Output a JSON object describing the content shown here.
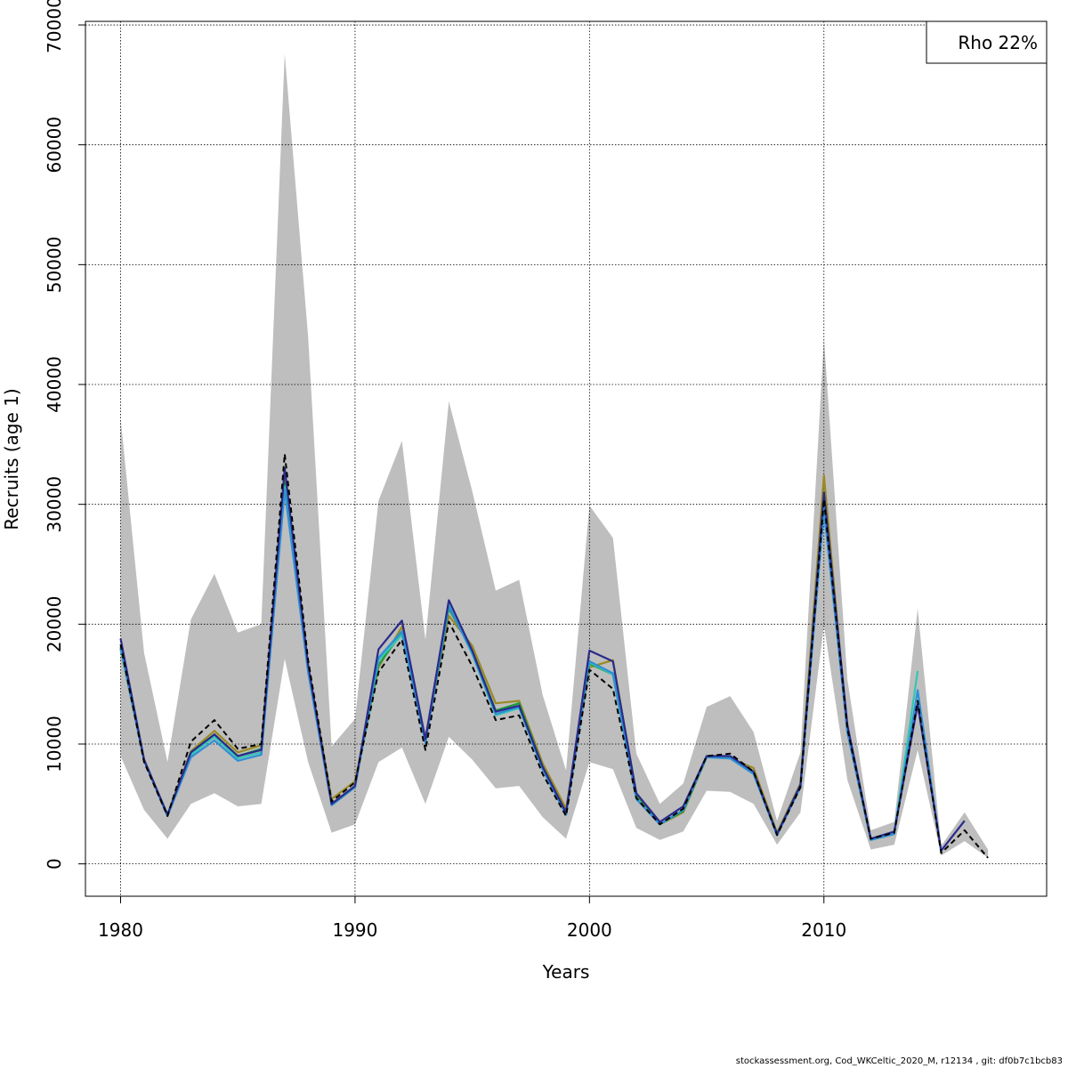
{
  "chart_data": {
    "type": "line",
    "xlabel": "Years",
    "ylabel": "Recruits (age 1)",
    "xlim": [
      1978.5,
      2019.5
    ],
    "ylim": [
      -2700,
      70300
    ],
    "x_ticks": [
      1980,
      1990,
      2000,
      2010
    ],
    "y_ticks": [
      0,
      10000,
      20000,
      30000,
      40000,
      50000,
      60000,
      70000
    ],
    "grid": true,
    "legend": {
      "text": "Rho 22%",
      "position": "top-right"
    },
    "confidence_band": {
      "years": [
        1980,
        1981,
        1982,
        1983,
        1984,
        1985,
        1986,
        1987,
        1988,
        1989,
        1990,
        1991,
        1992,
        1993,
        1994,
        1995,
        1996,
        1997,
        1998,
        1999,
        2000,
        2001,
        2002,
        2003,
        2004,
        2005,
        2006,
        2007,
        2008,
        2009,
        2010,
        2011,
        2012,
        2013,
        2014,
        2015,
        2016,
        2017
      ],
      "lower": [
        9000,
        4500,
        2100,
        5000,
        5900,
        4800,
        5000,
        17100,
        8500,
        2600,
        3300,
        8500,
        9700,
        5000,
        10600,
        8700,
        6300,
        6500,
        3900,
        2100,
        8500,
        7900,
        3000,
        2000,
        2700,
        6100,
        6000,
        5000,
        1600,
        4300,
        19900,
        7000,
        1200,
        1600,
        9500,
        700,
        1900,
        500
      ],
      "upper": [
        37200,
        17600,
        8500,
        20400,
        24200,
        19300,
        20000,
        67600,
        44000,
        9800,
        12100,
        30300,
        35300,
        18700,
        38600,
        31100,
        22800,
        23700,
        14100,
        7800,
        29900,
        27200,
        9200,
        5000,
        6700,
        13100,
        14000,
        11000,
        3600,
        9300,
        43800,
        15400,
        2800,
        3500,
        21300,
        1500,
        4300,
        1200
      ]
    },
    "series": [
      {
        "color": "#000000",
        "dashed": true,
        "x": [
          1980,
          1981,
          1982,
          1983,
          1984,
          1985,
          1986,
          1987,
          1988,
          1989,
          1990,
          1991,
          1992,
          1993,
          1994,
          1995,
          1996,
          1997,
          1998,
          1999,
          2000,
          2001,
          2002,
          2003,
          2004,
          2005,
          2006,
          2007,
          2008,
          2009,
          2010,
          2011,
          2012,
          2013,
          2014,
          2015,
          2016,
          2017
        ],
        "values": [
          18300,
          8500,
          4000,
          10200,
          12000,
          9600,
          10000,
          34200,
          17000,
          5200,
          6800,
          16000,
          18700,
          9500,
          20200,
          16500,
          12000,
          12400,
          7500,
          4000,
          16200,
          14600,
          5500,
          3300,
          4600,
          9000,
          9200,
          7700,
          2400,
          6400,
          30400,
          11300,
          2100,
          2600,
          13600,
          900,
          2800,
          500
        ]
      },
      {
        "color": "#2a2a8a",
        "dashed": false,
        "x": [
          1980,
          1981,
          1982,
          1983,
          1984,
          1985,
          1986,
          1987,
          1988,
          1989,
          1990,
          1991,
          1992,
          1993,
          1994,
          1995,
          1996,
          1997,
          1998,
          1999,
          2000,
          2001,
          2002,
          2003,
          2004,
          2005,
          2006,
          2007,
          2008,
          2009,
          2010,
          2011,
          2012,
          2013,
          2014,
          2015,
          2016
        ],
        "values": [
          18800,
          8700,
          4100,
          9300,
          10800,
          9000,
          9500,
          33000,
          16600,
          5000,
          6500,
          17900,
          20300,
          10400,
          22000,
          17800,
          12700,
          13200,
          8100,
          4300,
          17800,
          16900,
          5900,
          3500,
          4800,
          9000,
          9000,
          7700,
          2500,
          6600,
          31000,
          11600,
          2100,
          2700,
          13300,
          1100,
          3600
        ]
      },
      {
        "color": "#2e8fd6",
        "dashed": false,
        "x": [
          1980,
          1981,
          1982,
          1983,
          1984,
          1985,
          1986,
          1987,
          1988,
          1989,
          1990,
          1991,
          1992,
          1993,
          1994,
          1995,
          1996,
          1997,
          1998,
          1999,
          2000,
          2001,
          2002,
          2003,
          2004,
          2005,
          2006,
          2007,
          2008,
          2009,
          2010,
          2011,
          2012,
          2013,
          2014,
          2015
        ],
        "values": [
          18100,
          8600,
          4000,
          8900,
          10300,
          8600,
          9100,
          31200,
          16000,
          4900,
          6400,
          17200,
          19400,
          10100,
          21500,
          17600,
          12500,
          13100,
          7900,
          4100,
          16900,
          15900,
          5400,
          3300,
          4500,
          8900,
          8800,
          7500,
          2400,
          6400,
          29500,
          11000,
          2000,
          2500,
          14500,
          1000
        ]
      },
      {
        "color": "#34c6b5",
        "dashed": false,
        "x": [
          1980,
          1981,
          1982,
          1983,
          1984,
          1985,
          1986,
          1987,
          1988,
          1989,
          1990,
          1991,
          1992,
          1993,
          1994,
          1995,
          1996,
          1997,
          1998,
          1999,
          2000,
          2001,
          2002,
          2003,
          2004,
          2005,
          2006,
          2007,
          2008,
          2009,
          2010,
          2011,
          2012,
          2013,
          2014
        ],
        "values": [
          18000,
          8600,
          4000,
          9100,
          10600,
          8800,
          9300,
          31500,
          16200,
          4900,
          6400,
          17000,
          19100,
          10200,
          21600,
          17500,
          12400,
          13000,
          7900,
          4100,
          16800,
          15800,
          5500,
          3300,
          4500,
          8900,
          8800,
          7500,
          2400,
          6500,
          30300,
          11200,
          2000,
          2600,
          16100
        ]
      },
      {
        "color": "#1c9a3c",
        "dashed": false,
        "x": [
          1980,
          1981,
          1982,
          1983,
          1984,
          1985,
          1986,
          1987,
          1988,
          1989,
          1990,
          1991,
          1992,
          1993,
          1994,
          1995,
          1996,
          1997,
          1998,
          1999,
          2000,
          2001,
          2002,
          2003,
          2004,
          2005,
          2006,
          2007,
          2008,
          2009,
          2010,
          2011,
          2012,
          2013
        ],
        "values": [
          18000,
          8600,
          4100,
          9300,
          10800,
          9000,
          9600,
          31800,
          16300,
          5000,
          6500,
          16600,
          19300,
          10200,
          21300,
          17800,
          12800,
          13400,
          8100,
          4200,
          16700,
          15800,
          5600,
          3300,
          4400,
          8900,
          8900,
          7600,
          2500,
          6600,
          30700,
          11000,
          2000,
          2500
        ]
      },
      {
        "color": "#9a8a22",
        "dashed": false,
        "x": [
          1980,
          1981,
          1982,
          1983,
          1984,
          1985,
          1986,
          1987,
          1988,
          1989,
          1990,
          1991,
          1992,
          1993,
          1994,
          1995,
          1996,
          1997,
          1998,
          1999,
          2000,
          2001,
          2002,
          2003,
          2004,
          2005,
          2006,
          2007,
          2008,
          2009,
          2010,
          2011,
          2012
        ],
        "values": [
          17900,
          8700,
          4100,
          9400,
          11100,
          9300,
          9900,
          32300,
          16500,
          5400,
          6900,
          16400,
          19800,
          10400,
          20700,
          18200,
          13400,
          13600,
          8400,
          4600,
          16400,
          17000,
          5800,
          3300,
          4300,
          8900,
          8800,
          8000,
          2600,
          6700,
          32400,
          11100,
          2000
        ]
      }
    ]
  },
  "footer": "stockassessment.org, Cod_WKCeltic_2020_M, r12134 , git: df0b7c1bcb83"
}
